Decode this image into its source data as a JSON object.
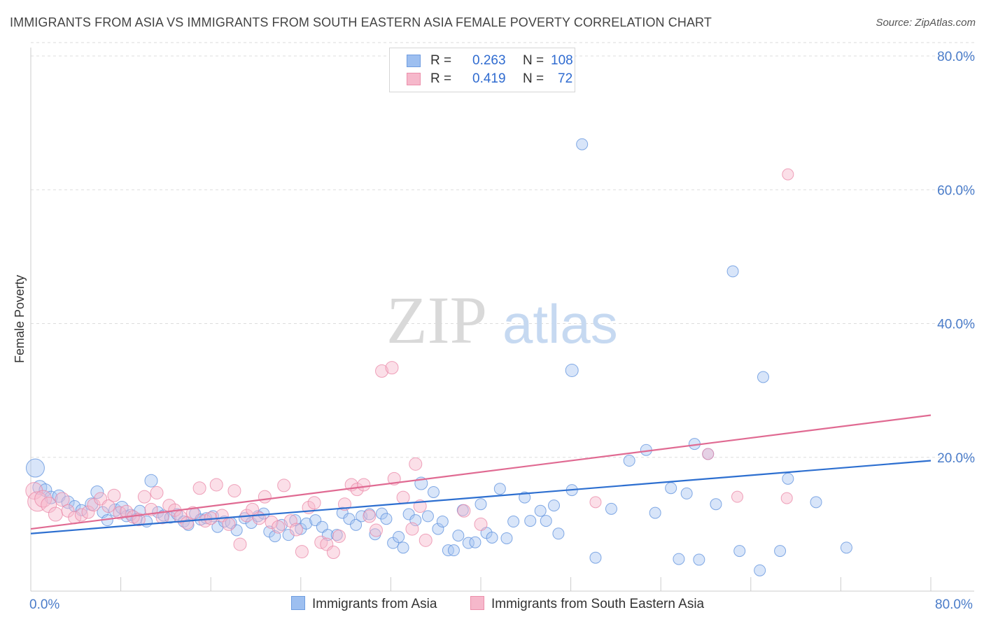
{
  "title": "IMMIGRANTS FROM ASIA VS IMMIGRANTS FROM SOUTH EASTERN ASIA FEMALE POVERTY CORRELATION CHART",
  "source": "Source: ZipAtlas.com",
  "watermark": {
    "zip": "ZIP",
    "atlas": "atlas"
  },
  "legend": {
    "r_label": "R =",
    "n_label": "N =",
    "rows": [
      {
        "r": "0.263",
        "n": "108",
        "color": "#9dbff0",
        "border": "#6f9de0"
      },
      {
        "r": "0.419",
        "n": "72",
        "color": "#f6b8cb",
        "border": "#ec8fab"
      }
    ]
  },
  "colors": {
    "asia_fill": "#a8c6f2",
    "asia_stroke": "#5b8fdc",
    "asia_line": "#2d6fd0",
    "sea_fill": "#f7b9cc",
    "sea_stroke": "#ea86a5",
    "sea_line": "#e06a92",
    "grid": "#dddddd",
    "axis_text": "#4a7cc9"
  },
  "chart_data": {
    "type": "scatter",
    "title": "IMMIGRANTS FROM ASIA VS IMMIGRANTS FROM SOUTH EASTERN ASIA FEMALE POVERTY CORRELATION CHART",
    "xlabel": "",
    "ylabel": "Female Poverty",
    "xlim": [
      0,
      80
    ],
    "ylim": [
      0,
      80
    ],
    "x_tick_labels": [
      "0.0%",
      "80.0%"
    ],
    "y_ticks": [
      20,
      40,
      60,
      80
    ],
    "y_tick_labels": [
      "20.0%",
      "40.0%",
      "60.0%",
      "80.0%"
    ],
    "x_minor_ticks": [
      0,
      8,
      16,
      24,
      32,
      40,
      48,
      56,
      64,
      72,
      80
    ],
    "series": [
      {
        "name": "Immigrants from Asia",
        "r": 0.263,
        "n": 108,
        "trend": {
          "x": [
            0,
            80
          ],
          "y": [
            8.6,
            19.5
          ]
        },
        "points": [
          [
            0.4,
            18.4,
            13
          ],
          [
            0.8,
            15.5,
            10
          ],
          [
            1.3,
            15.1,
            9
          ],
          [
            1.8,
            14.0,
            9
          ],
          [
            2.5,
            14.2,
            9
          ],
          [
            3.3,
            13.3,
            9
          ],
          [
            3.9,
            12.7,
            8
          ],
          [
            4.5,
            12.1,
            8
          ],
          [
            5.4,
            13.0,
            9
          ],
          [
            5.9,
            14.8,
            9
          ],
          [
            6.4,
            11.8,
            8
          ],
          [
            6.8,
            10.6,
            8
          ],
          [
            7.5,
            12.1,
            9
          ],
          [
            8.1,
            12.5,
            9
          ],
          [
            8.5,
            11.2,
            8
          ],
          [
            8.9,
            11.4,
            8
          ],
          [
            9.4,
            10.8,
            8
          ],
          [
            9.7,
            12.0,
            8
          ],
          [
            10.3,
            10.4,
            8
          ],
          [
            10.7,
            16.5,
            9
          ],
          [
            11.3,
            11.8,
            8
          ],
          [
            11.8,
            11.3,
            8
          ],
          [
            12.4,
            11.0,
            8
          ],
          [
            13.0,
            11.5,
            8
          ],
          [
            13.6,
            10.4,
            8
          ],
          [
            14.0,
            9.9,
            8
          ],
          [
            14.6,
            11.6,
            8
          ],
          [
            15.1,
            10.7,
            8
          ],
          [
            15.6,
            10.9,
            8
          ],
          [
            16.2,
            11.2,
            8
          ],
          [
            16.6,
            9.6,
            8
          ],
          [
            17.2,
            10.4,
            8
          ],
          [
            17.8,
            10.2,
            8
          ],
          [
            18.3,
            9.1,
            8
          ],
          [
            19.0,
            10.9,
            8
          ],
          [
            19.6,
            10.2,
            8
          ],
          [
            20.2,
            11.2,
            8
          ],
          [
            20.7,
            11.6,
            8
          ],
          [
            21.2,
            8.9,
            8
          ],
          [
            21.7,
            8.2,
            8
          ],
          [
            22.3,
            9.9,
            8
          ],
          [
            22.9,
            8.4,
            8
          ],
          [
            23.5,
            10.6,
            8
          ],
          [
            24.0,
            9.3,
            8
          ],
          [
            24.5,
            10.1,
            8
          ],
          [
            25.3,
            10.6,
            8
          ],
          [
            25.9,
            9.6,
            8
          ],
          [
            26.4,
            8.4,
            8
          ],
          [
            27.2,
            8.4,
            8
          ],
          [
            27.7,
            11.7,
            8
          ],
          [
            28.3,
            10.8,
            8
          ],
          [
            28.9,
            9.9,
            8
          ],
          [
            29.4,
            11.2,
            8
          ],
          [
            30.1,
            11.5,
            8
          ],
          [
            30.6,
            8.5,
            8
          ],
          [
            31.2,
            11.6,
            8
          ],
          [
            31.6,
            10.8,
            8
          ],
          [
            32.2,
            7.2,
            8
          ],
          [
            32.7,
            8.1,
            8
          ],
          [
            33.1,
            6.5,
            8
          ],
          [
            33.6,
            11.5,
            8
          ],
          [
            34.2,
            10.6,
            8
          ],
          [
            34.7,
            16.1,
            9
          ],
          [
            35.3,
            11.2,
            8
          ],
          [
            35.8,
            14.8,
            8
          ],
          [
            36.2,
            9.3,
            8
          ],
          [
            36.6,
            10.4,
            8
          ],
          [
            37.1,
            6.1,
            8
          ],
          [
            37.6,
            6.1,
            8
          ],
          [
            38.0,
            8.3,
            8
          ],
          [
            38.4,
            12.1,
            8
          ],
          [
            38.9,
            7.2,
            8
          ],
          [
            39.5,
            7.3,
            8
          ],
          [
            40.0,
            13.0,
            8
          ],
          [
            40.5,
            8.7,
            8
          ],
          [
            41.0,
            8.0,
            8
          ],
          [
            41.7,
            15.3,
            8
          ],
          [
            42.3,
            7.9,
            8
          ],
          [
            42.9,
            10.4,
            8
          ],
          [
            43.9,
            14.0,
            8
          ],
          [
            44.4,
            10.5,
            8
          ],
          [
            45.3,
            12.0,
            8
          ],
          [
            45.8,
            10.5,
            8
          ],
          [
            46.5,
            12.8,
            8
          ],
          [
            46.9,
            8.6,
            8
          ],
          [
            48.1,
            15.1,
            8
          ],
          [
            50.2,
            5.0,
            8
          ],
          [
            51.6,
            12.3,
            8
          ],
          [
            55.5,
            11.7,
            8
          ],
          [
            57.6,
            4.8,
            8
          ],
          [
            59.4,
            4.7,
            8
          ],
          [
            63.0,
            6.0,
            8
          ],
          [
            64.8,
            3.1,
            8
          ],
          [
            66.6,
            6.0,
            8
          ],
          [
            69.8,
            13.3,
            8
          ],
          [
            72.5,
            6.5,
            8
          ],
          [
            49.0,
            66.8,
            8
          ],
          [
            62.4,
            47.8,
            8
          ],
          [
            48.1,
            33.0,
            9
          ],
          [
            59.0,
            22.0,
            8
          ],
          [
            60.2,
            20.5,
            8
          ],
          [
            53.2,
            19.5,
            8
          ],
          [
            65.1,
            32.0,
            8
          ],
          [
            54.7,
            21.1,
            8
          ],
          [
            58.3,
            14.6,
            8
          ],
          [
            60.9,
            13.0,
            8
          ],
          [
            67.3,
            16.8,
            8
          ],
          [
            56.9,
            15.4,
            8
          ]
        ]
      },
      {
        "name": "Immigrants from South Eastern Asia",
        "r": 0.419,
        "n": 72,
        "trend": {
          "x": [
            0,
            80
          ],
          "y": [
            9.3,
            26.3
          ]
        },
        "points": [
          [
            0.3,
            15.0,
            12
          ],
          [
            0.6,
            13.4,
            14
          ],
          [
            1.1,
            13.8,
            12
          ],
          [
            1.6,
            12.9,
            11
          ],
          [
            2.2,
            11.5,
            10
          ],
          [
            2.8,
            13.7,
            10
          ],
          [
            3.3,
            12.0,
            9
          ],
          [
            3.9,
            11.0,
            9
          ],
          [
            4.5,
            11.4,
            9
          ],
          [
            5.1,
            11.8,
            9
          ],
          [
            5.6,
            12.9,
            9
          ],
          [
            6.2,
            13.8,
            9
          ],
          [
            6.9,
            12.7,
            9
          ],
          [
            7.4,
            14.3,
            9
          ],
          [
            7.9,
            11.7,
            9
          ],
          [
            8.5,
            11.9,
            9
          ],
          [
            9.1,
            11.1,
            9
          ],
          [
            9.6,
            10.7,
            9
          ],
          [
            10.1,
            14.1,
            9
          ],
          [
            10.7,
            12.2,
            9
          ],
          [
            11.2,
            14.7,
            9
          ],
          [
            11.7,
            11.0,
            9
          ],
          [
            12.3,
            12.8,
            9
          ],
          [
            12.8,
            12.1,
            9
          ],
          [
            13.3,
            11.1,
            9
          ],
          [
            13.9,
            10.2,
            9
          ],
          [
            14.4,
            11.7,
            9
          ],
          [
            15.0,
            15.4,
            9
          ],
          [
            15.5,
            10.5,
            9
          ],
          [
            16.0,
            10.9,
            9
          ],
          [
            16.5,
            15.9,
            9
          ],
          [
            17.0,
            11.3,
            9
          ],
          [
            17.6,
            10.0,
            9
          ],
          [
            18.1,
            15.0,
            9
          ],
          [
            18.6,
            7.0,
            9
          ],
          [
            19.2,
            11.3,
            9
          ],
          [
            19.7,
            12.2,
            9
          ],
          [
            20.3,
            10.9,
            9
          ],
          [
            20.8,
            14.1,
            9
          ],
          [
            21.4,
            10.3,
            9
          ],
          [
            22.0,
            9.6,
            9
          ],
          [
            22.5,
            15.8,
            9
          ],
          [
            23.1,
            10.5,
            9
          ],
          [
            23.6,
            9.2,
            9
          ],
          [
            24.1,
            5.9,
            9
          ],
          [
            24.7,
            12.5,
            9
          ],
          [
            25.2,
            13.2,
            9
          ],
          [
            25.8,
            7.3,
            9
          ],
          [
            26.3,
            7.0,
            9
          ],
          [
            26.9,
            5.8,
            9
          ],
          [
            27.4,
            8.2,
            9
          ],
          [
            27.9,
            13.0,
            9
          ],
          [
            28.5,
            15.9,
            9
          ],
          [
            29.0,
            15.2,
            9
          ],
          [
            29.6,
            15.9,
            9
          ],
          [
            30.1,
            11.2,
            9
          ],
          [
            30.7,
            9.1,
            9
          ],
          [
            31.2,
            32.9,
            9
          ],
          [
            32.1,
            33.4,
            9
          ],
          [
            32.3,
            16.8,
            9
          ],
          [
            33.1,
            14.0,
            9
          ],
          [
            33.9,
            9.3,
            9
          ],
          [
            34.2,
            19.0,
            9
          ],
          [
            34.6,
            12.7,
            9
          ],
          [
            35.1,
            7.6,
            9
          ],
          [
            60.2,
            20.5,
            8
          ],
          [
            62.8,
            14.1,
            8
          ],
          [
            50.2,
            13.3,
            8
          ],
          [
            67.3,
            62.3,
            8
          ],
          [
            67.2,
            13.9,
            8
          ],
          [
            38.5,
            12.0,
            9
          ],
          [
            40.0,
            10.0,
            9
          ]
        ]
      }
    ]
  }
}
